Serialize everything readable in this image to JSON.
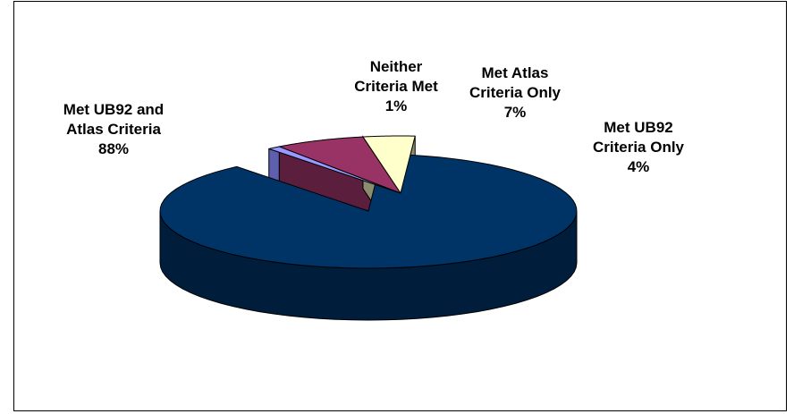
{
  "chart_data": {
    "type": "pie",
    "style": "3d-exploded",
    "title": "",
    "slices": [
      {
        "label_lines": [
          "Met UB92 and",
          "Atlas Criteria"
        ],
        "pct_label": "88%",
        "value": 88,
        "color": "#003366",
        "side_color": "#001d3b"
      },
      {
        "label_lines": [
          "Neither",
          "Criteria Met"
        ],
        "pct_label": "1%",
        "value": 1,
        "color": "#9999ff",
        "side_color": "#5f5fb0"
      },
      {
        "label_lines": [
          "Met Atlas",
          "Criteria Only"
        ],
        "pct_label": "7%",
        "value": 7,
        "color": "#993366",
        "side_color": "#5c1e3d"
      },
      {
        "label_lines": [
          "Met UB92",
          "Criteria Only"
        ],
        "pct_label": "4%",
        "value": 4,
        "color": "#ffffcc",
        "side_color": "#8c8c6e"
      }
    ]
  }
}
